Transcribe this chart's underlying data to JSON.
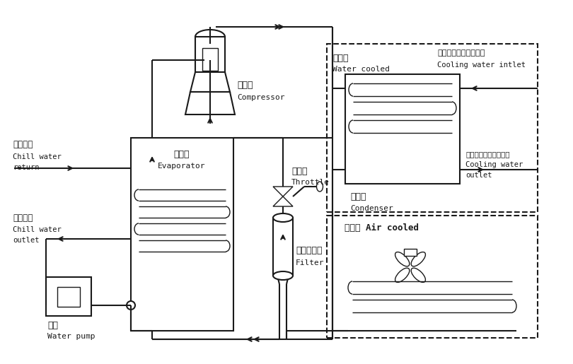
{
  "bg_color": "#ffffff",
  "line_color": "#1a1a1a",
  "lw": 1.5,
  "tlw": 1.0,
  "labels": {
    "chill_water_return_cn": "冰水回口",
    "chill_water_return_en1": "Chill water",
    "chill_water_return_en2": "return",
    "chill_water_outlet_cn": "冰水出口",
    "chill_water_outlet_en1": "Chill water",
    "chill_water_outlet_en2": "outlet",
    "water_pump_cn": "水泵",
    "water_pump_en": "Water pump",
    "evaporator_cn": "蒸发器",
    "evaporator_en": "Evaporator",
    "compressor_cn": "压缩机",
    "compressor_en": "Compressor",
    "throttle_cn": "节流阀",
    "throttle_en": "Throttle",
    "filter_cn": "干燥过滤器",
    "filter_en": "Filter",
    "condenser_cn": "冷凝器",
    "condenser_en": "Condenser",
    "water_cooled_cn": "水冷式",
    "water_cooled_en": "Water cooled",
    "air_cooled": "风冷式 Air cooled",
    "inlet_cn": "入水口（接散热水塔）",
    "inlet_en": "Cooling water intlet",
    "outlet_cn": "出水口（接散热水塔）",
    "outlet_en1": "Cooling water",
    "outlet_en2": "outlet"
  },
  "figsize": [
    8.1,
    5.15
  ],
  "dpi": 100
}
